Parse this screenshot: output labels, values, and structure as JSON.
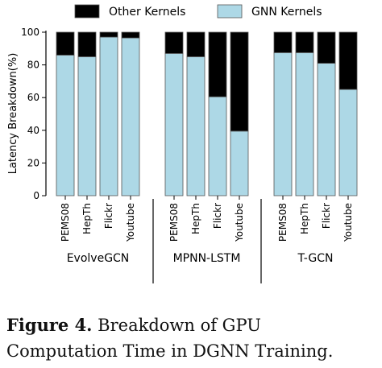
{
  "chart_data": {
    "type": "bar",
    "stacked": true,
    "ylabel": "Latency Breakdown(%)",
    "ylim": [
      0,
      100
    ],
    "yticks": [
      0,
      20,
      40,
      60,
      80,
      100
    ],
    "legend": {
      "placement": "top",
      "entries": [
        {
          "label": "Other Kernels",
          "color": "#000000"
        },
        {
          "label": "GNN Kernels",
          "color": "#add8e6"
        }
      ]
    },
    "groups": [
      {
        "name": "EvolveGCN",
        "categories": [
          "PEMS08",
          "HepTh",
          "Flickr",
          "Youtube"
        ],
        "gnn_kernels": [
          86,
          85,
          97,
          96.5
        ],
        "other_kernels": [
          14,
          15,
          3,
          3.5
        ]
      },
      {
        "name": "MPNN-LSTM",
        "categories": [
          "PEMS08",
          "HepTh",
          "Flickr",
          "Youtube"
        ],
        "gnn_kernels": [
          87,
          85,
          60.5,
          39.5
        ],
        "other_kernels": [
          13,
          15,
          39.5,
          60.5
        ]
      },
      {
        "name": "T-GCN",
        "categories": [
          "PEMS08",
          "HepTh",
          "Flickr",
          "Youtube"
        ],
        "gnn_kernels": [
          87.5,
          87.5,
          81,
          65
        ],
        "other_kernels": [
          12.5,
          12.5,
          19,
          35
        ]
      }
    ],
    "colors": {
      "gnn": "#add8e6",
      "other": "#000000",
      "bar_edge": "#555555"
    }
  },
  "caption": {
    "label": "Figure 4.",
    "text": " Breakdown of GPU Computation Time in DGNN Training."
  }
}
